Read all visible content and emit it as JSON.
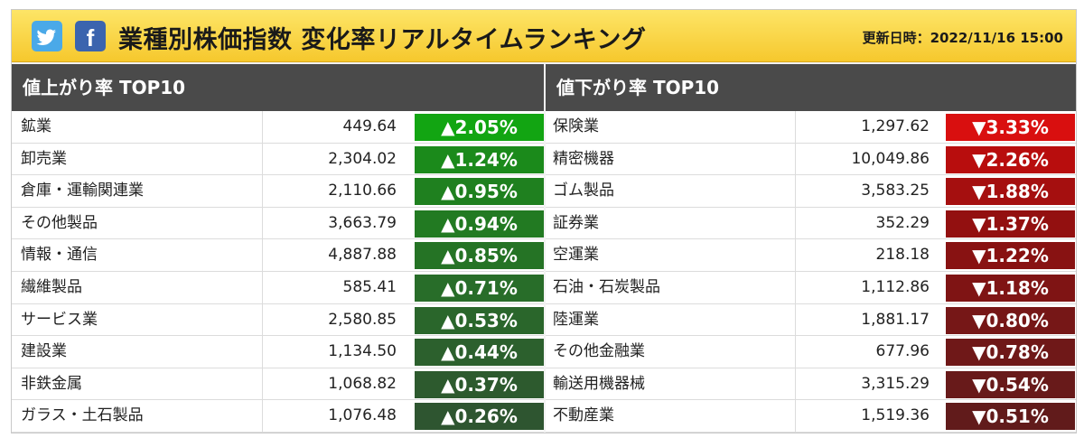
{
  "header": {
    "title": "業種別株価指数 変化率リアルタイムランキング",
    "updated": "更新日時：2022/11/16 15:00",
    "twitter_icon": "twitter-icon",
    "facebook_icon": "facebook-icon",
    "facebook_glyph": "f"
  },
  "colors": {
    "up_base": "#2e7d32",
    "down_base": "#8b0000",
    "header_bg": "#f9d64a",
    "panel_head_bg": "#4a4a4a"
  },
  "gainers": {
    "heading": "値上がり率 TOP10",
    "rows": [
      {
        "name": "鉱業",
        "value": "449.64",
        "change": "▲2.05%",
        "color": "#12a512"
      },
      {
        "name": "卸売業",
        "value": "2,304.02",
        "change": "▲1.24%",
        "color": "#1b8a1b"
      },
      {
        "name": "倉庫・運輸関連業",
        "value": "2,110.66",
        "change": "▲0.95%",
        "color": "#1f801f"
      },
      {
        "name": "その他製品",
        "value": "3,663.79",
        "change": "▲0.94%",
        "color": "#227a22"
      },
      {
        "name": "情報・通信",
        "value": "4,887.88",
        "change": "▲0.85%",
        "color": "#257325"
      },
      {
        "name": "繊維製品",
        "value": "585.41",
        "change": "▲0.71%",
        "color": "#286d29"
      },
      {
        "name": "サービス業",
        "value": "2,580.85",
        "change": "▲0.53%",
        "color": "#2a662b"
      },
      {
        "name": "建設業",
        "value": "1,134.50",
        "change": "▲0.44%",
        "color": "#2c602d"
      },
      {
        "name": "非鉄金属",
        "value": "1,068.82",
        "change": "▲0.37%",
        "color": "#2d5a2e"
      },
      {
        "name": "ガラス・土石製品",
        "value": "1,076.48",
        "change": "▲0.26%",
        "color": "#2e5530"
      }
    ]
  },
  "losers": {
    "heading": "値下がり率 TOP10",
    "rows": [
      {
        "name": "保険業",
        "value": "1,297.62",
        "change": "▼3.33%",
        "color": "#d90f0f"
      },
      {
        "name": "精密機器",
        "value": "10,049.86",
        "change": "▼2.26%",
        "color": "#b80d0d"
      },
      {
        "name": "ゴム製品",
        "value": "3,583.25",
        "change": "▼1.88%",
        "color": "#a50f0f"
      },
      {
        "name": "証券業",
        "value": "352.29",
        "change": "▼1.37%",
        "color": "#931010"
      },
      {
        "name": "空運業",
        "value": "218.18",
        "change": "▼1.22%",
        "color": "#881212"
      },
      {
        "name": "石油・石炭製品",
        "value": "1,112.86",
        "change": "▼1.18%",
        "color": "#7f1414"
      },
      {
        "name": "陸運業",
        "value": "1,881.17",
        "change": "▼0.80%",
        "color": "#761717"
      },
      {
        "name": "その他金融業",
        "value": "677.96",
        "change": "▼0.78%",
        "color": "#6f1818"
      },
      {
        "name": "輸送用機器械",
        "value": "3,315.29",
        "change": "▼0.54%",
        "color": "#681a1a"
      },
      {
        "name": "不動産業",
        "value": "1,519.36",
        "change": "▼0.51%",
        "color": "#611b1b"
      }
    ]
  }
}
